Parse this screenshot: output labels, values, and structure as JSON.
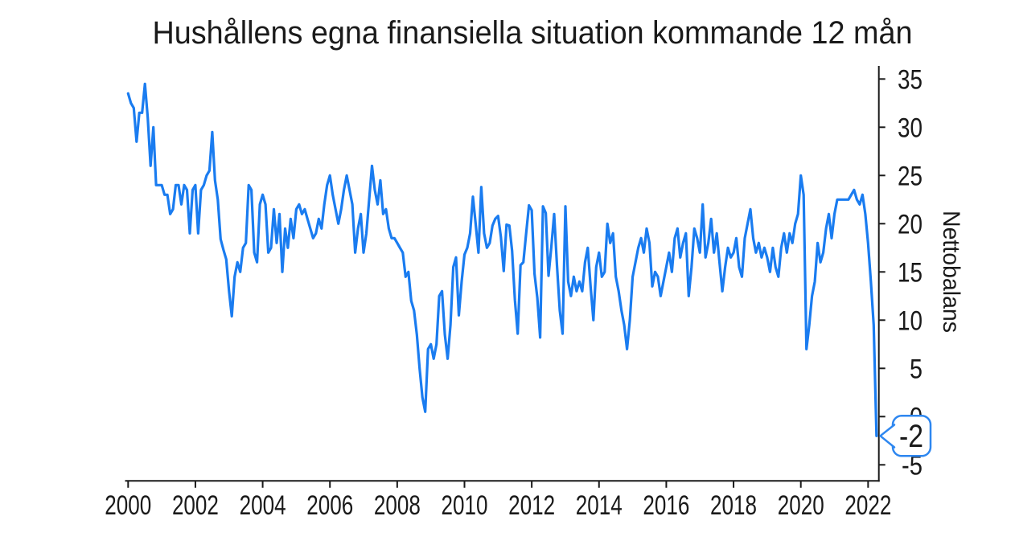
{
  "title": "Hushållens egna finansiella situation kommande 12 mån",
  "chart_data": {
    "type": "line",
    "title": "Hushållens egna finansiella situation kommande 12 mån",
    "xlabel": "",
    "ylabel": "Nettobalans",
    "frequency": "monthly",
    "x_start_year": 2000,
    "points_per_year": 12,
    "x_end_label": "2022",
    "xticks": [
      2000,
      2002,
      2004,
      2006,
      2008,
      2010,
      2012,
      2014,
      2016,
      2018,
      2020,
      2022
    ],
    "yticks": [
      35,
      30,
      25,
      20,
      15,
      10,
      5,
      0,
      -5
    ],
    "ylim": [
      -6.6,
      36.4
    ],
    "xlim": [
      1999.9,
      2022.33
    ],
    "grid": false,
    "legend": null,
    "line_color": "#1a7cf0",
    "axis_color": "#1a1a1a",
    "values": [
      33.5,
      32.5,
      32,
      28.5,
      31.5,
      31.5,
      34.5,
      31,
      26,
      30,
      24,
      24,
      24,
      23,
      23,
      21,
      21.5,
      24,
      24,
      22,
      24,
      23.5,
      19,
      23.5,
      24,
      19,
      23.5,
      24,
      25,
      25.5,
      29.5,
      24.5,
      22.5,
      18.4,
      17.3,
      16.3,
      13,
      10.4,
      14.5,
      16,
      15,
      17.5,
      18,
      24,
      23.5,
      17,
      16,
      22,
      23,
      22,
      17,
      17.5,
      21.5,
      18,
      21,
      15,
      19.5,
      17.5,
      20.5,
      18.5,
      21.5,
      22,
      21,
      21.5,
      20.5,
      19.5,
      18.5,
      19,
      20.5,
      19.5,
      22,
      24,
      25,
      23,
      21.5,
      20,
      21.5,
      23.5,
      25,
      23.5,
      22,
      17,
      19.5,
      21,
      17,
      19,
      22.5,
      26,
      23.5,
      22,
      24.5,
      21,
      21.5,
      19.5,
      18.5,
      18.5,
      18,
      17.5,
      17,
      14.5,
      15,
      12,
      11,
      8.5,
      5,
      2,
      0.5,
      7,
      7.5,
      6,
      7.5,
      12.5,
      13,
      8.5,
      6,
      9.5,
      15.5,
      16.5,
      10.5,
      14,
      16.8,
      17.5,
      19,
      22.8,
      20,
      17,
      23.8,
      19,
      17.5,
      18,
      19.8,
      20.5,
      20.8,
      18.6,
      15.1,
      19.9,
      19.8,
      17.2,
      12.1,
      8.6,
      15.7,
      16,
      19,
      21.9,
      21.4,
      14.8,
      12.3,
      8.2,
      21.8,
      21.1,
      14.6,
      17.6,
      21,
      15.7,
      11,
      8.6,
      21.8,
      14,
      12.5,
      14.5,
      13,
      14,
      13,
      16,
      17.5,
      13.5,
      10,
      15.5,
      17,
      14.5,
      15,
      20,
      18,
      19,
      14.5,
      13,
      11,
      9.5,
      7,
      10,
      14.5,
      16,
      17.5,
      18.5,
      17,
      19.5,
      18,
      13.5,
      15,
      14.5,
      12.5,
      14,
      15.5,
      17,
      15,
      18.5,
      19.5,
      16.5,
      18,
      19,
      12.5,
      15.5,
      19.5,
      18.5,
      17,
      22,
      16.5,
      18,
      20.5,
      17,
      19,
      16,
      13,
      15.5,
      17.5,
      16.5,
      17,
      18.5,
      15.5,
      14.5,
      18.5,
      20,
      21.5,
      18.5,
      17,
      18,
      16.5,
      17.5,
      16.5,
      15,
      17.5,
      15.5,
      14.5,
      17.5,
      19,
      17,
      19,
      18,
      20,
      21,
      25,
      23,
      7,
      9.5,
      12.5,
      14,
      18,
      16,
      17,
      19.5,
      21,
      18.5,
      21,
      22.5,
      22.5,
      22.5,
      22.5,
      22.5,
      23,
      23.5,
      22.5,
      22,
      23,
      21,
      18,
      14,
      9.5,
      -2
    ],
    "callout": {
      "label": "-2",
      "value": -2,
      "border_color": "#2e87f0",
      "text_color": "#5b97ea",
      "fill_color": "#ffffff"
    }
  }
}
